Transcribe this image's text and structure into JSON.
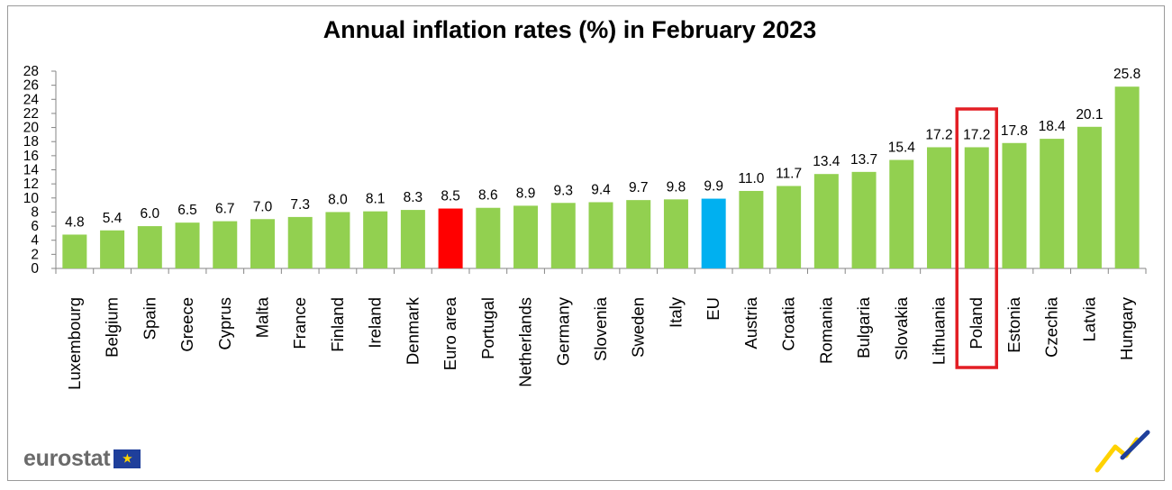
{
  "chart_data": {
    "type": "bar",
    "title": "Annual inflation rates (%) in February 2023",
    "categories": [
      "Luxembourg",
      "Belgium",
      "Spain",
      "Greece",
      "Cyprus",
      "Malta",
      "France",
      "Finland",
      "Ireland",
      "Denmark",
      "Euro area",
      "Portugal",
      "Netherlands",
      "Germany",
      "Slovenia",
      "Sweden",
      "Italy",
      "EU",
      "Austria",
      "Croatia",
      "Romania",
      "Bulgaria",
      "Slovakia",
      "Lithuania",
      "Poland",
      "Estonia",
      "Czechia",
      "Latvia",
      "Hungary"
    ],
    "values": [
      4.8,
      5.4,
      6.0,
      6.5,
      6.7,
      7.0,
      7.3,
      8.0,
      8.1,
      8.3,
      8.5,
      8.6,
      8.9,
      9.3,
      9.4,
      9.7,
      9.8,
      9.9,
      11.0,
      11.7,
      13.4,
      13.7,
      15.4,
      17.2,
      17.2,
      17.8,
      18.4,
      20.1,
      25.8
    ],
    "value_labels": [
      "4.8",
      "5.4",
      "6.0",
      "6.5",
      "6.7",
      "7.0",
      "7.3",
      "8.0",
      "8.1",
      "8.3",
      "8.5",
      "8.6",
      "8.9",
      "9.3",
      "9.4",
      "9.7",
      "9.8",
      "9.9",
      "11.0",
      "11.7",
      "13.4",
      "13.7",
      "15.4",
      "17.2",
      "17.2",
      "17.8",
      "18.4",
      "20.1",
      "25.8"
    ],
    "ylim": [
      0,
      28
    ],
    "yticks": [
      "0",
      "2",
      "4",
      "6",
      "8",
      "10",
      "12",
      "14",
      "16",
      "18",
      "20",
      "22",
      "24",
      "26",
      "28"
    ],
    "grid": false,
    "colors": {
      "default": "#92d050",
      "Euro area": "#ff0000",
      "EU": "#00b0f0"
    },
    "highlight": {
      "category": "Poland",
      "color": "#e31e24"
    }
  },
  "branding": {
    "logo_text": "eurostat",
    "logo_icon": "eu-flag-icon",
    "corner_icon": "eurostat-swoosh-icon",
    "logo_color": "#6a6a6a"
  }
}
